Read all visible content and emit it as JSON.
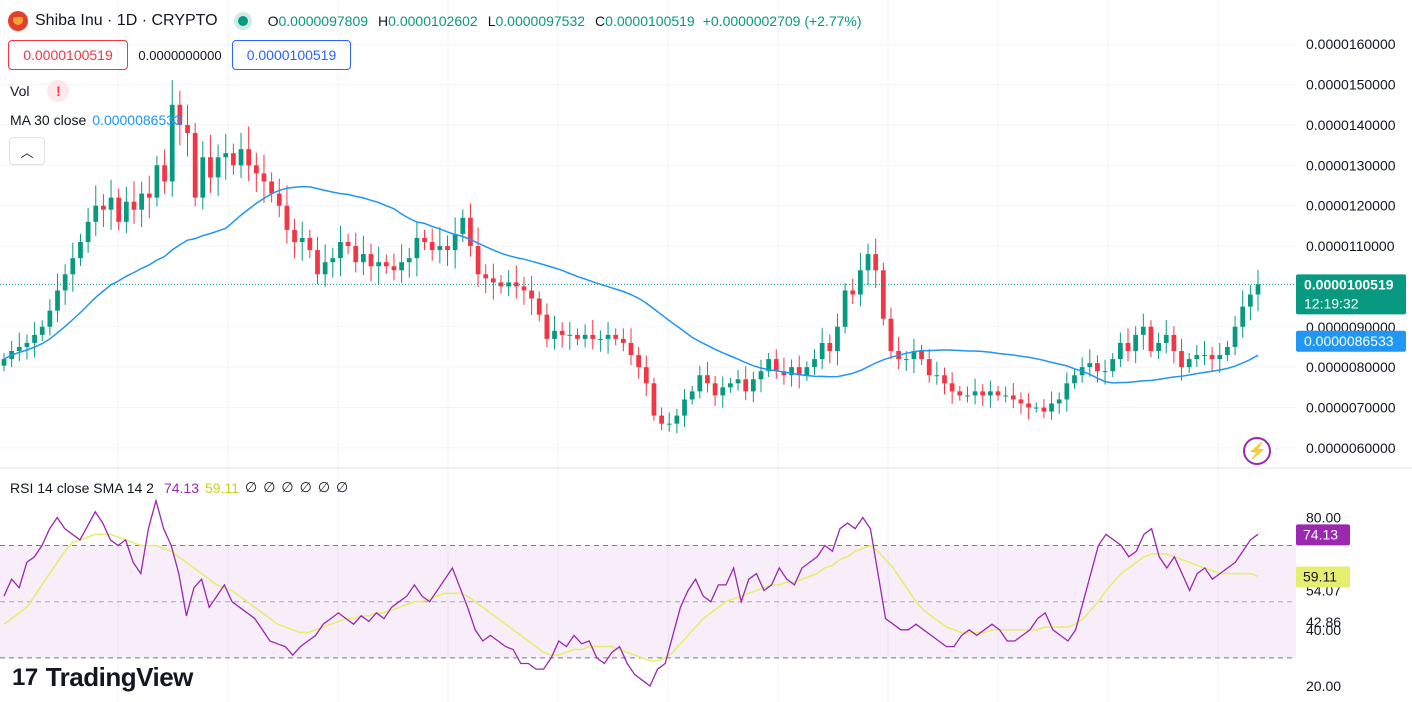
{
  "header": {
    "symbol": "Shiba Inu · 1D · CRYPTO",
    "o_label": "O",
    "o_value": "0.0000097809",
    "h_label": "H",
    "h_value": "0.0000102602",
    "l_label": "L",
    "l_value": "0.0000097532",
    "c_label": "C",
    "c_value": "0.0000100519",
    "change": "+0.0000002709 (+2.77%)"
  },
  "trade": {
    "sell_price": "0.0000100519",
    "spread": "0.0000000000",
    "buy_price": "0.0000100519"
  },
  "legends": {
    "vol_label": "Vol",
    "vol_warning": "!",
    "ma_label": "MA 30 close",
    "ma_value": "0.0000086533",
    "rsi_label": "RSI 14 close SMA 14 2",
    "rsi_value": "74.13",
    "rsi_sma_value": "59.11",
    "rsi_empty": [
      "∅",
      "∅",
      "∅",
      "∅",
      "∅",
      "∅"
    ]
  },
  "price_axis": {
    "ticks": [
      "0.0000160000",
      "0.0000150000",
      "0.0000140000",
      "0.0000130000",
      "0.0000120000",
      "0.0000110000",
      "0.0000090000",
      "0.0000080000",
      "0.0000070000",
      "0.0000060000"
    ],
    "last_price_label": "0.0000100519",
    "countdown": "12:19:32",
    "ma_label": "0.0000086533"
  },
  "rsi_axis": {
    "ticks": [
      "80.00",
      "54.07",
      "42.86",
      "40.00",
      "20.00"
    ],
    "rsi_label": "74.13",
    "sma_label": "59.11"
  },
  "brand": {
    "name": "TradingView"
  },
  "colors": {
    "up": "#089981",
    "down": "#f23645",
    "ma": "#2196f3",
    "rsi": "#9c27b0",
    "rsi_sma": "#e6ee70",
    "band": "#9c27b0"
  },
  "chart_data": [
    {
      "type": "candlestick",
      "title": "Shiba Inu · 1D · CRYPTO",
      "ylim": [
        5.7e-06,
        1.66e-05
      ],
      "close": [
        8.2e-06,
        8.4e-06,
        8.5e-06,
        8.6e-06,
        8.8e-06,
        9e-06,
        9.4e-06,
        9.9e-06,
        1.03e-05,
        1.07e-05,
        1.11e-05,
        1.16e-05,
        1.2e-05,
        1.19e-05,
        1.22e-05,
        1.16e-05,
        1.21e-05,
        1.19e-05,
        1.23e-05,
        1.22e-05,
        1.3e-05,
        1.26e-05,
        1.45e-05,
        1.4e-05,
        1.38e-05,
        1.22e-05,
        1.32e-05,
        1.27e-05,
        1.32e-05,
        1.33e-05,
        1.3e-05,
        1.34e-05,
        1.3e-05,
        1.28e-05,
        1.26e-05,
        1.23e-05,
        1.2e-05,
        1.14e-05,
        1.11e-05,
        1.12e-05,
        1.09e-05,
        1.03e-05,
        1.06e-05,
        1.07e-05,
        1.11e-05,
        1.1e-05,
        1.06e-05,
        1.08e-05,
        1.05e-05,
        1.06e-05,
        1.05e-05,
        1.04e-05,
        1.06e-05,
        1.07e-05,
        1.12e-05,
        1.11e-05,
        1.09e-05,
        1.1e-05,
        1.09e-05,
        1.13e-05,
        1.17e-05,
        1.1e-05,
        1.03e-05,
        1.02e-05,
        1.01e-05,
        1e-05,
        1.01e-05,
        1e-05,
        9.9e-06,
        9.7e-06,
        9.3e-06,
        8.7e-06,
        8.9e-06,
        8.8e-06,
        8.8e-06,
        8.7e-06,
        8.8e-06,
        8.7e-06,
        8.7e-06,
        8.8e-06,
        8.7e-06,
        8.6e-06,
        8.3e-06,
        8e-06,
        7.6e-06,
        6.8e-06,
        6.6e-06,
        6.6e-06,
        6.8e-06,
        7.2e-06,
        7.4e-06,
        7.8e-06,
        7.6e-06,
        7.3e-06,
        7.5e-06,
        7.6e-06,
        7.7e-06,
        7.4e-06,
        7.7e-06,
        7.9e-06,
        8.2e-06,
        7.9e-06,
        7.8e-06,
        8e-06,
        7.8e-06,
        8e-06,
        8.2e-06,
        8.6e-06,
        8.4e-06,
        9e-06,
        9.9e-06,
        9.8e-06,
        1.04e-05,
        1.08e-05,
        1.04e-05,
        9.2e-06,
        8.4e-06,
        8.2e-06,
        8.2e-06,
        8.4e-06,
        8.2e-06,
        7.8e-06,
        7.8e-06,
        7.6e-06,
        7.4e-06,
        7.3e-06,
        7.3e-06,
        7.4e-06,
        7.3e-06,
        7.4e-06,
        7.3e-06,
        7.3e-06,
        7.2e-06,
        7.1e-06,
        7e-06,
        7e-06,
        6.9e-06,
        7.1e-06,
        7.2e-06,
        7.6e-06,
        7.8e-06,
        8e-06,
        8.1e-06,
        7.9e-06,
        7.9e-06,
        8.2e-06,
        8.6e-06,
        8.4e-06,
        8.8e-06,
        9e-06,
        8.4e-06,
        8.6e-06,
        8.8e-06,
        8.4e-06,
        8e-06,
        8.2e-06,
        8.3e-06,
        8.3e-06,
        8.2e-06,
        8.3e-06,
        8.5e-06,
        9e-06,
        9.5e-06,
        9.8e-06,
        1.00519e-05
      ],
      "ma": {
        "name": "MA 30 close",
        "last": 8.6533e-06
      }
    },
    {
      "type": "line",
      "title": "RSI 14 close SMA 14 2",
      "ylim": [
        15,
        88
      ],
      "bands": [
        70,
        30
      ],
      "middle": 50,
      "rsi": [
        52,
        58,
        55,
        64,
        66,
        70,
        76,
        80,
        76,
        74,
        72,
        77,
        82,
        78,
        72,
        70,
        72,
        64,
        60,
        76,
        86,
        76,
        70,
        60,
        45,
        55,
        58,
        48,
        52,
        56,
        50,
        48,
        46,
        44,
        40,
        36,
        35,
        34,
        31,
        34,
        36,
        38,
        42,
        44,
        46,
        44,
        42,
        45,
        43,
        46,
        44,
        48,
        50,
        52,
        56,
        52,
        50,
        54,
        58,
        62,
        55,
        48,
        40,
        36,
        38,
        36,
        34,
        33,
        28,
        28,
        26,
        26,
        30,
        36,
        34,
        38,
        35,
        36,
        30,
        28,
        32,
        34,
        28,
        24,
        22,
        20,
        26,
        28,
        38,
        48,
        54,
        58,
        52,
        50,
        56,
        56,
        62,
        50,
        58,
        60,
        54,
        56,
        62,
        58,
        56,
        62,
        64,
        66,
        70,
        68,
        76,
        78,
        76,
        80,
        76,
        60,
        44,
        42,
        40,
        40,
        42,
        40,
        38,
        36,
        34,
        34,
        38,
        40,
        38,
        40,
        42,
        40,
        36,
        36,
        38,
        40,
        44,
        46,
        40,
        38,
        36,
        40,
        50,
        60,
        70,
        74,
        72,
        70,
        66,
        68,
        74,
        76,
        66,
        62,
        66,
        60,
        54,
        60,
        62,
        58,
        60,
        62,
        64,
        68,
        72,
        74
      ],
      "sma": [
        42,
        44,
        46,
        48,
        52,
        56,
        60,
        64,
        68,
        71,
        72,
        73,
        74,
        74,
        74,
        73,
        72,
        71,
        70,
        70,
        70,
        69,
        68,
        66,
        64,
        62,
        60,
        58,
        56,
        55,
        54,
        52,
        50,
        48,
        46,
        44,
        42,
        41,
        40,
        39,
        39,
        40,
        41,
        42,
        43,
        44,
        44,
        45,
        45,
        46,
        46,
        47,
        48,
        49,
        50,
        50,
        51,
        52,
        53,
        53,
        53,
        52,
        50,
        48,
        46,
        44,
        42,
        40,
        38,
        36,
        34,
        32,
        31,
        31,
        32,
        33,
        33,
        34,
        34,
        34,
        34,
        33,
        32,
        31,
        30,
        29,
        29,
        30,
        32,
        35,
        38,
        41,
        44,
        46,
        48,
        50,
        51,
        52,
        53,
        54,
        55,
        56,
        56,
        57,
        57,
        58,
        59,
        60,
        62,
        63,
        65,
        66,
        68,
        69,
        70,
        68,
        65,
        62,
        58,
        54,
        50,
        47,
        45,
        43,
        41,
        40,
        39,
        39,
        39,
        39,
        40,
        40,
        40,
        40,
        40,
        40,
        40,
        41,
        41,
        41,
        41,
        42,
        44,
        47,
        50,
        54,
        57,
        60,
        62,
        64,
        66,
        67,
        67,
        67,
        66,
        65,
        64,
        63,
        62,
        61,
        60,
        60,
        60,
        60,
        60,
        59
      ]
    }
  ]
}
